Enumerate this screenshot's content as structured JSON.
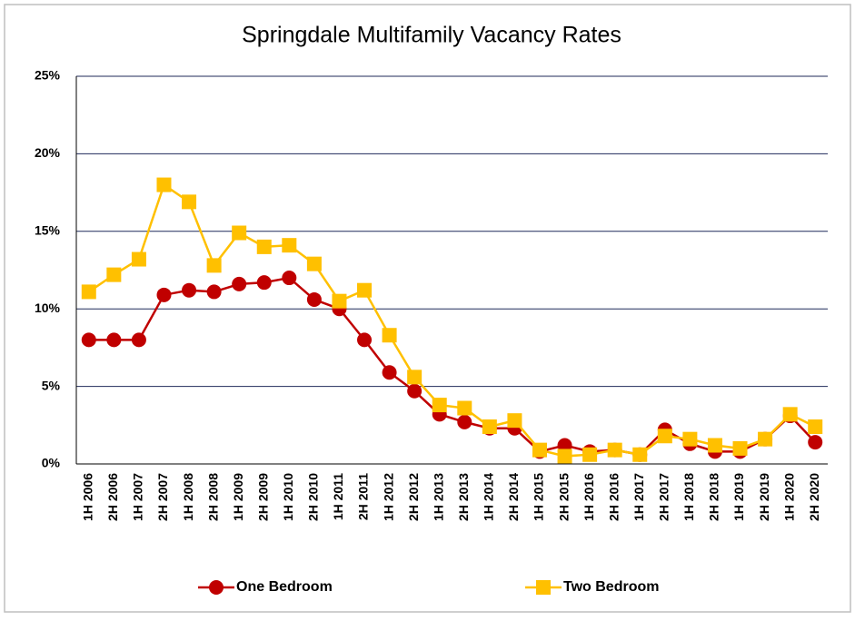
{
  "chart_data": {
    "type": "line",
    "title": "Springdale Multifamily Vacancy Rates",
    "categories": [
      "1H 2006",
      "2H 2006",
      "1H 2007",
      "2H 2007",
      "1H 2008",
      "2H 2008",
      "1H 2009",
      "2H 2009",
      "1H 2010",
      "2H 2010",
      "1H 2011",
      "2H 2011",
      "1H 2012",
      "2H 2012",
      "1H 2013",
      "2H 2013",
      "1H 2014",
      "2H 2014",
      "1H 2015",
      "2H 2015",
      "1H 2016",
      "2H 2016",
      "1H 2017",
      "2H 2017",
      "1H 2018",
      "2H 2018",
      "1H 2019",
      "2H 2019",
      "1H 2020",
      "2H 2020"
    ],
    "series": [
      {
        "name": "One Bedroom",
        "color": "#c00000",
        "marker": "circle",
        "values": [
          8.0,
          8.0,
          8.0,
          10.9,
          11.2,
          11.1,
          11.6,
          11.7,
          12.0,
          10.6,
          10.0,
          8.0,
          5.9,
          4.7,
          3.2,
          2.7,
          2.3,
          2.3,
          0.8,
          1.2,
          0.8,
          0.9,
          0.6,
          2.2,
          1.3,
          0.8,
          0.8,
          1.6,
          3.1,
          1.4
        ]
      },
      {
        "name": "Two Bedroom",
        "color": "#ffc000",
        "marker": "square",
        "values": [
          11.1,
          12.2,
          13.2,
          18.0,
          16.9,
          12.8,
          14.9,
          14.0,
          14.1,
          12.9,
          10.5,
          11.2,
          8.3,
          5.6,
          3.8,
          3.6,
          2.4,
          2.8,
          0.9,
          0.5,
          0.6,
          0.9,
          0.6,
          1.8,
          1.6,
          1.2,
          1.0,
          1.6,
          3.2,
          2.4
        ]
      }
    ],
    "ylim": [
      0,
      25
    ],
    "yticks": [
      {
        "value": 0,
        "label": "0%"
      },
      {
        "value": 5,
        "label": "5%"
      },
      {
        "value": 10,
        "label": "10%"
      },
      {
        "value": 15,
        "label": "15%"
      },
      {
        "value": 20,
        "label": "20%"
      },
      {
        "value": 25,
        "label": "25%"
      }
    ],
    "grid": true,
    "legend": "bottom"
  }
}
